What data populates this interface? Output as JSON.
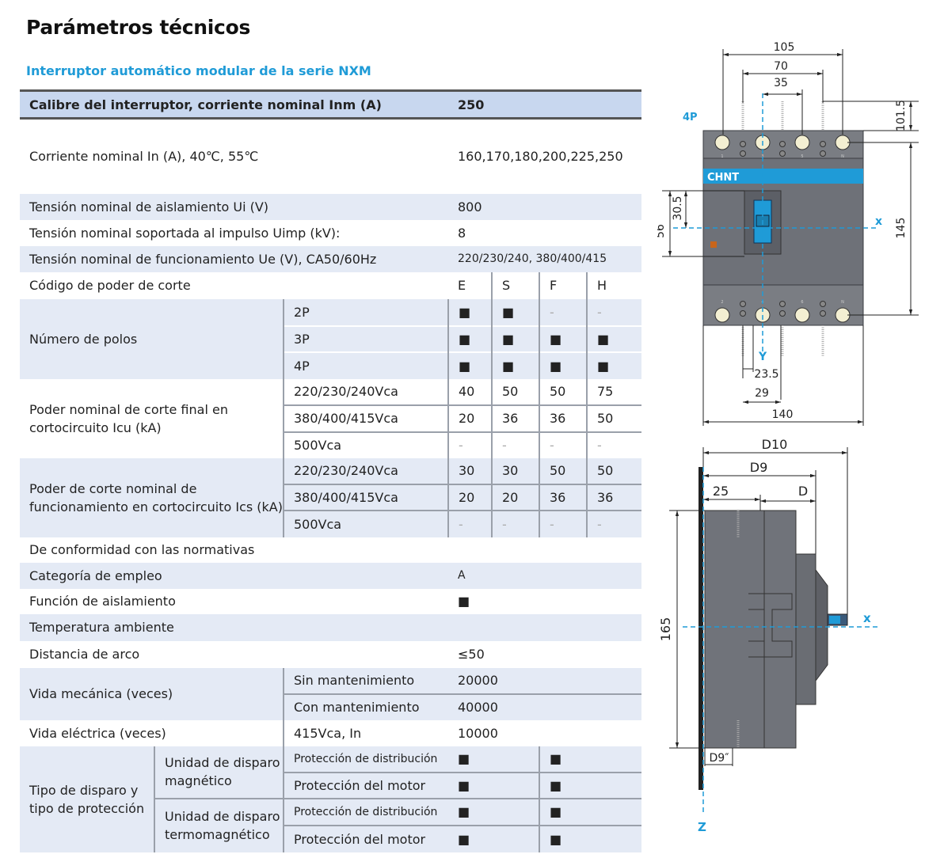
{
  "page": {
    "title": "Parámetros técnicos",
    "subtitle": "Interruptor automático modular de la serie NXM"
  },
  "colors": {
    "accent": "#1f9bd7",
    "header_bg": "#c8d7ef",
    "row_shade": "#e4eaf5",
    "body_gray": "#6e7178",
    "terminal": "#f3efd2"
  },
  "table": {
    "header": {
      "label": "Calibre del interruptor, corriente nominal Inm (A)",
      "value": "250"
    },
    "rated_current": {
      "label": "Corriente nominal In (A), 40℃, 55℃",
      "value": "160,170,180,200,225,250"
    },
    "ui": {
      "label": "Tensión nominal de aislamiento Ui (V)",
      "value": "800"
    },
    "uimp": {
      "label": "Tensión nominal soportada al impulso Uimp (kV):",
      "value": "8"
    },
    "ue": {
      "label": "Tensión nominal de funcionamiento Ue (V), CA50/60Hz",
      "value": "220/230/240, 380/400/415"
    },
    "codes": {
      "label": "Código de poder de corte",
      "values": [
        "E",
        "S",
        "F",
        "H"
      ]
    },
    "poles": {
      "label": "Número de polos",
      "rows": [
        {
          "name": "2P",
          "values": [
            "■",
            "■",
            "-",
            "-"
          ]
        },
        {
          "name": "3P",
          "values": [
            "■",
            "■",
            "■",
            "■"
          ]
        },
        {
          "name": "4P",
          "values": [
            "■",
            "■",
            "■",
            "■"
          ]
        }
      ]
    },
    "icu": {
      "label": "Poder nominal de corte final en cortocircuito Icu (kA)",
      "rows": [
        {
          "name": "220/230/240Vca",
          "values": [
            "40",
            "50",
            "50",
            "75"
          ]
        },
        {
          "name": "380/400/415Vca",
          "values": [
            "20",
            "36",
            "36",
            "50"
          ]
        },
        {
          "name": "500Vca",
          "values": [
            "-",
            "-",
            "-",
            "-"
          ]
        }
      ]
    },
    "ics": {
      "label": "Poder de corte nominal de funcionamiento en cortocircuito Ics (kA)",
      "rows": [
        {
          "name": "220/230/240Vca",
          "values": [
            "30",
            "30",
            "50",
            "50"
          ]
        },
        {
          "name": "380/400/415Vca",
          "values": [
            "20",
            "20",
            "36",
            "36"
          ]
        },
        {
          "name": "500Vca",
          "values": [
            "-",
            "-",
            "-",
            "-"
          ]
        }
      ]
    },
    "conformity": {
      "label": "De conformidad con las normativas"
    },
    "category": {
      "label": "Categoría de empleo",
      "value": "A"
    },
    "isolation": {
      "label": "Función de aislamiento",
      "value": "■"
    },
    "temperature": {
      "label": "Temperatura ambiente"
    },
    "arc": {
      "label": "Distancia de arco",
      "value": "≤50"
    },
    "mech_life": {
      "label": "Vida mecánica (veces)",
      "rows": [
        {
          "name": "Sin mantenimiento",
          "value": "20000"
        },
        {
          "name": "Con mantenimiento",
          "value": "40000"
        }
      ]
    },
    "elec_life": {
      "label": "Vida eléctrica (veces)",
      "name": "415Vca, In",
      "value": "10000"
    },
    "trip": {
      "label": "Tipo de disparo y tipo de protección",
      "units": [
        {
          "name": "Unidad de disparo magnético",
          "rows": [
            {
              "name": "Protección de distribución",
              "values": [
                "■",
                "■"
              ]
            },
            {
              "name": "Protección del motor",
              "values": [
                "■",
                "■"
              ]
            }
          ]
        },
        {
          "name": "Unidad de disparo termomagnético",
          "rows": [
            {
              "name": "Protección de distribución",
              "values": [
                "■",
                "■"
              ]
            },
            {
              "name": "Protección del motor",
              "values": [
                "■",
                "■"
              ]
            }
          ]
        }
      ]
    }
  },
  "drawing": {
    "front": {
      "label": "4P",
      "brand": "CHNT",
      "dims": {
        "w105": "105",
        "w70": "70",
        "w35": "35",
        "h101": "101.5",
        "h145": "145",
        "h30": "30.5",
        "h56": "56",
        "w23": "23.5",
        "w29": "29",
        "w140": "140"
      },
      "axes": {
        "x": "x",
        "y": "Y"
      },
      "terminals_top": [
        "1",
        "3",
        "5",
        "N"
      ],
      "terminals_bottom": [
        "2",
        "4",
        "6",
        "N"
      ]
    },
    "side": {
      "dims": {
        "d10": "D10",
        "d9": "D9",
        "w25": "25",
        "d": "D",
        "h165": "165",
        "d9b": "D9″"
      },
      "axes": {
        "x": "x",
        "z": "Z"
      }
    }
  }
}
